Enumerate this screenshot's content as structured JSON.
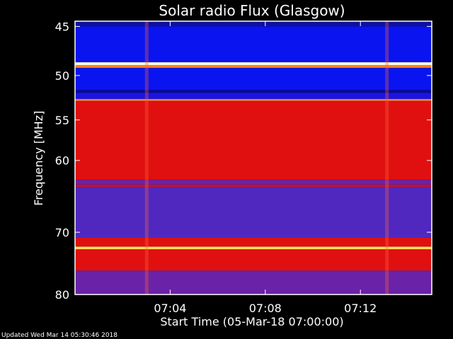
{
  "chart_data": {
    "type": "heatmap",
    "title": "Solar radio Flux (Glasgow)",
    "xlabel": "Start Time (05-Mar-18 07:00:00)",
    "ylabel": "Frequency [MHz]",
    "y_ticks": [
      45,
      50,
      55,
      60,
      70,
      80
    ],
    "x_ticks": [
      "07:04",
      "07:08",
      "07:12"
    ],
    "ylim": [
      44.5,
      80
    ],
    "y_scale": "log",
    "xlim_minutes": [
      0,
      15
    ],
    "x_tick_minutes": [
      4,
      8,
      12
    ],
    "bands": [
      {
        "from": 44.5,
        "to": 45.0,
        "color": "#1010a0"
      },
      {
        "from": 45.0,
        "to": 48.6,
        "color": "#0a14f0"
      },
      {
        "from": 48.6,
        "to": 48.9,
        "color": "#ffffe0"
      },
      {
        "from": 48.9,
        "to": 49.2,
        "color": "#ff8020"
      },
      {
        "from": 49.2,
        "to": 51.6,
        "color": "#0a14f0"
      },
      {
        "from": 51.6,
        "to": 51.9,
        "color": "#0a0a90"
      },
      {
        "from": 51.9,
        "to": 52.6,
        "color": "#1c14e0"
      },
      {
        "from": 52.6,
        "to": 52.8,
        "color": "#ff9040"
      },
      {
        "from": 52.8,
        "to": 62.5,
        "color": "#e01010"
      },
      {
        "from": 62.5,
        "to": 63.2,
        "color": "#7020a0"
      },
      {
        "from": 63.2,
        "to": 63.5,
        "color": "#d01020"
      },
      {
        "from": 63.5,
        "to": 70.8,
        "color": "#5028c0"
      },
      {
        "from": 70.8,
        "to": 72.2,
        "color": "#e01010"
      },
      {
        "from": 72.2,
        "to": 72.6,
        "color": "#ffe060"
      },
      {
        "from": 72.6,
        "to": 76.0,
        "color": "#e01010"
      },
      {
        "from": 76.0,
        "to": 80.0,
        "color": "#6a22a8"
      }
    ],
    "bursts_minutes": [
      3.0,
      13.1
    ],
    "footer": "Updated Wed Mar 14 05:30:46 2018"
  }
}
